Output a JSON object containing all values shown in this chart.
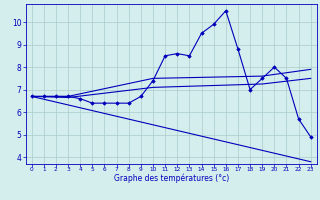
{
  "xlabel": "Graphe des températures (°c)",
  "background_color": "#d4eeee",
  "line_color": "#0000bb",
  "grid_color": "#aacccc",
  "xlim": [
    -0.5,
    23.5
  ],
  "ylim": [
    3.7,
    10.8
  ],
  "yticks": [
    4,
    5,
    6,
    7,
    8,
    9,
    10
  ],
  "xticks": [
    0,
    1,
    2,
    3,
    4,
    5,
    6,
    7,
    8,
    9,
    10,
    11,
    12,
    13,
    14,
    15,
    16,
    17,
    18,
    19,
    20,
    21,
    22,
    23
  ],
  "series": [
    {
      "x": [
        0,
        1,
        2,
        3,
        4,
        5,
        6,
        7,
        8,
        9,
        10,
        11,
        12,
        13,
        14,
        15,
        16,
        17,
        18,
        19,
        20,
        21,
        22,
        23
      ],
      "y": [
        6.7,
        6.7,
        6.7,
        6.7,
        6.6,
        6.4,
        6.4,
        6.4,
        6.4,
        6.7,
        7.4,
        8.5,
        8.6,
        8.5,
        9.5,
        9.9,
        10.5,
        8.8,
        7.0,
        7.5,
        8.0,
        7.5,
        5.7,
        4.9
      ],
      "marker": "D",
      "markersize": 1.8,
      "linewidth": 0.8
    },
    {
      "x": [
        0,
        3,
        10,
        19,
        23
      ],
      "y": [
        6.7,
        6.7,
        7.5,
        7.6,
        7.9
      ],
      "marker": null,
      "linewidth": 0.8
    },
    {
      "x": [
        0,
        3,
        10,
        19,
        23
      ],
      "y": [
        6.7,
        6.65,
        7.1,
        7.25,
        7.5
      ],
      "marker": null,
      "linewidth": 0.8
    },
    {
      "x": [
        0,
        23
      ],
      "y": [
        6.7,
        3.8
      ],
      "marker": null,
      "linewidth": 0.8
    }
  ]
}
